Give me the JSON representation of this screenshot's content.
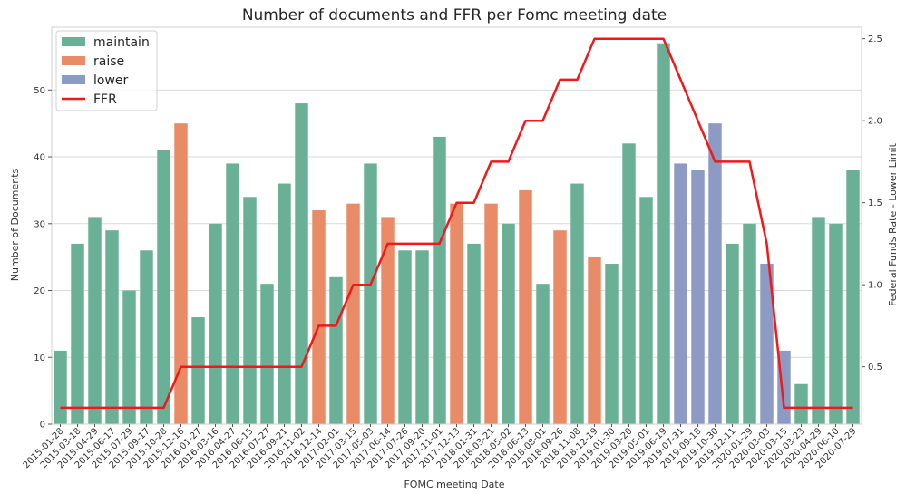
{
  "chart_data": {
    "type": "bar",
    "title": "Number of documents and FFR per Fomc meeting date",
    "xlabel": "FOMC meeting Date",
    "ylabel": "Number of Documents",
    "y2label": "Federal Funds Rate - Lower Limit",
    "ylim": [
      0,
      59.4
    ],
    "y2lim": [
      0.15,
      2.57
    ],
    "yticks": [
      0,
      10,
      20,
      30,
      40,
      50
    ],
    "y2ticks": [
      0.5,
      1.0,
      1.5,
      2.0,
      2.5
    ],
    "grid": true,
    "legend_position": "top-left",
    "legend": [
      {
        "label": "maintain",
        "kind": "bar",
        "color": "#69b096"
      },
      {
        "label": "raise",
        "kind": "bar",
        "color": "#e88b66"
      },
      {
        "label": "lower",
        "kind": "bar",
        "color": "#8c9ac4"
      },
      {
        "label": "FFR",
        "kind": "line",
        "color": "#f01818"
      }
    ],
    "colors": {
      "maintain": "#69b096",
      "raise": "#e88b66",
      "lower": "#8c9ac4",
      "FFR": "#f01818"
    },
    "categories": [
      "2015-01-28",
      "2015-03-18",
      "2015-04-29",
      "2015-06-17",
      "2015-07-29",
      "2015-09-17",
      "2015-10-28",
      "2015-12-16",
      "2016-01-27",
      "2016-03-16",
      "2016-04-27",
      "2016-06-15",
      "2016-07-27",
      "2016-09-21",
      "2016-11-02",
      "2016-12-14",
      "2017-02-01",
      "2017-03-15",
      "2017-05-03",
      "2017-06-14",
      "2017-07-26",
      "2017-09-20",
      "2017-11-01",
      "2017-12-13",
      "2018-01-31",
      "2018-03-21",
      "2018-05-02",
      "2018-06-13",
      "2018-08-01",
      "2018-09-26",
      "2018-11-08",
      "2018-12-19",
      "2019-01-30",
      "2019-03-20",
      "2019-05-01",
      "2019-06-19",
      "2019-07-31",
      "2019-09-18",
      "2019-10-30",
      "2019-12-11",
      "2020-01-29",
      "2020-03-03",
      "2020-03-15",
      "2020-03-23",
      "2020-04-29",
      "2020-06-10",
      "2020-07-29"
    ],
    "values": [
      11,
      27,
      31,
      29,
      20,
      26,
      41,
      45,
      16,
      30,
      39,
      34,
      21,
      36,
      48,
      32,
      22,
      33,
      39,
      31,
      26,
      26,
      43,
      33,
      27,
      33,
      30,
      35,
      21,
      29,
      36,
      25,
      24,
      42,
      34,
      57,
      39,
      38,
      45,
      27,
      30,
      24,
      11,
      6,
      31,
      30,
      38
    ],
    "decisions": [
      "maintain",
      "maintain",
      "maintain",
      "maintain",
      "maintain",
      "maintain",
      "maintain",
      "raise",
      "maintain",
      "maintain",
      "maintain",
      "maintain",
      "maintain",
      "maintain",
      "maintain",
      "raise",
      "maintain",
      "raise",
      "maintain",
      "raise",
      "maintain",
      "maintain",
      "maintain",
      "raise",
      "maintain",
      "raise",
      "maintain",
      "raise",
      "maintain",
      "raise",
      "maintain",
      "raise",
      "maintain",
      "maintain",
      "maintain",
      "maintain",
      "lower",
      "lower",
      "lower",
      "maintain",
      "maintain",
      "lower",
      "lower",
      "maintain",
      "maintain",
      "maintain",
      "maintain"
    ],
    "ffr": [
      0.25,
      0.25,
      0.25,
      0.25,
      0.25,
      0.25,
      0.25,
      0.5,
      0.5,
      0.5,
      0.5,
      0.5,
      0.5,
      0.5,
      0.5,
      0.75,
      0.75,
      1.0,
      1.0,
      1.25,
      1.25,
      1.25,
      1.25,
      1.5,
      1.5,
      1.75,
      1.75,
      2.0,
      2.0,
      2.25,
      2.25,
      2.5,
      2.5,
      2.5,
      2.5,
      2.5,
      2.25,
      2.0,
      1.75,
      1.75,
      1.75,
      1.25,
      0.25,
      0.25,
      0.25,
      0.25,
      0.25
    ]
  }
}
